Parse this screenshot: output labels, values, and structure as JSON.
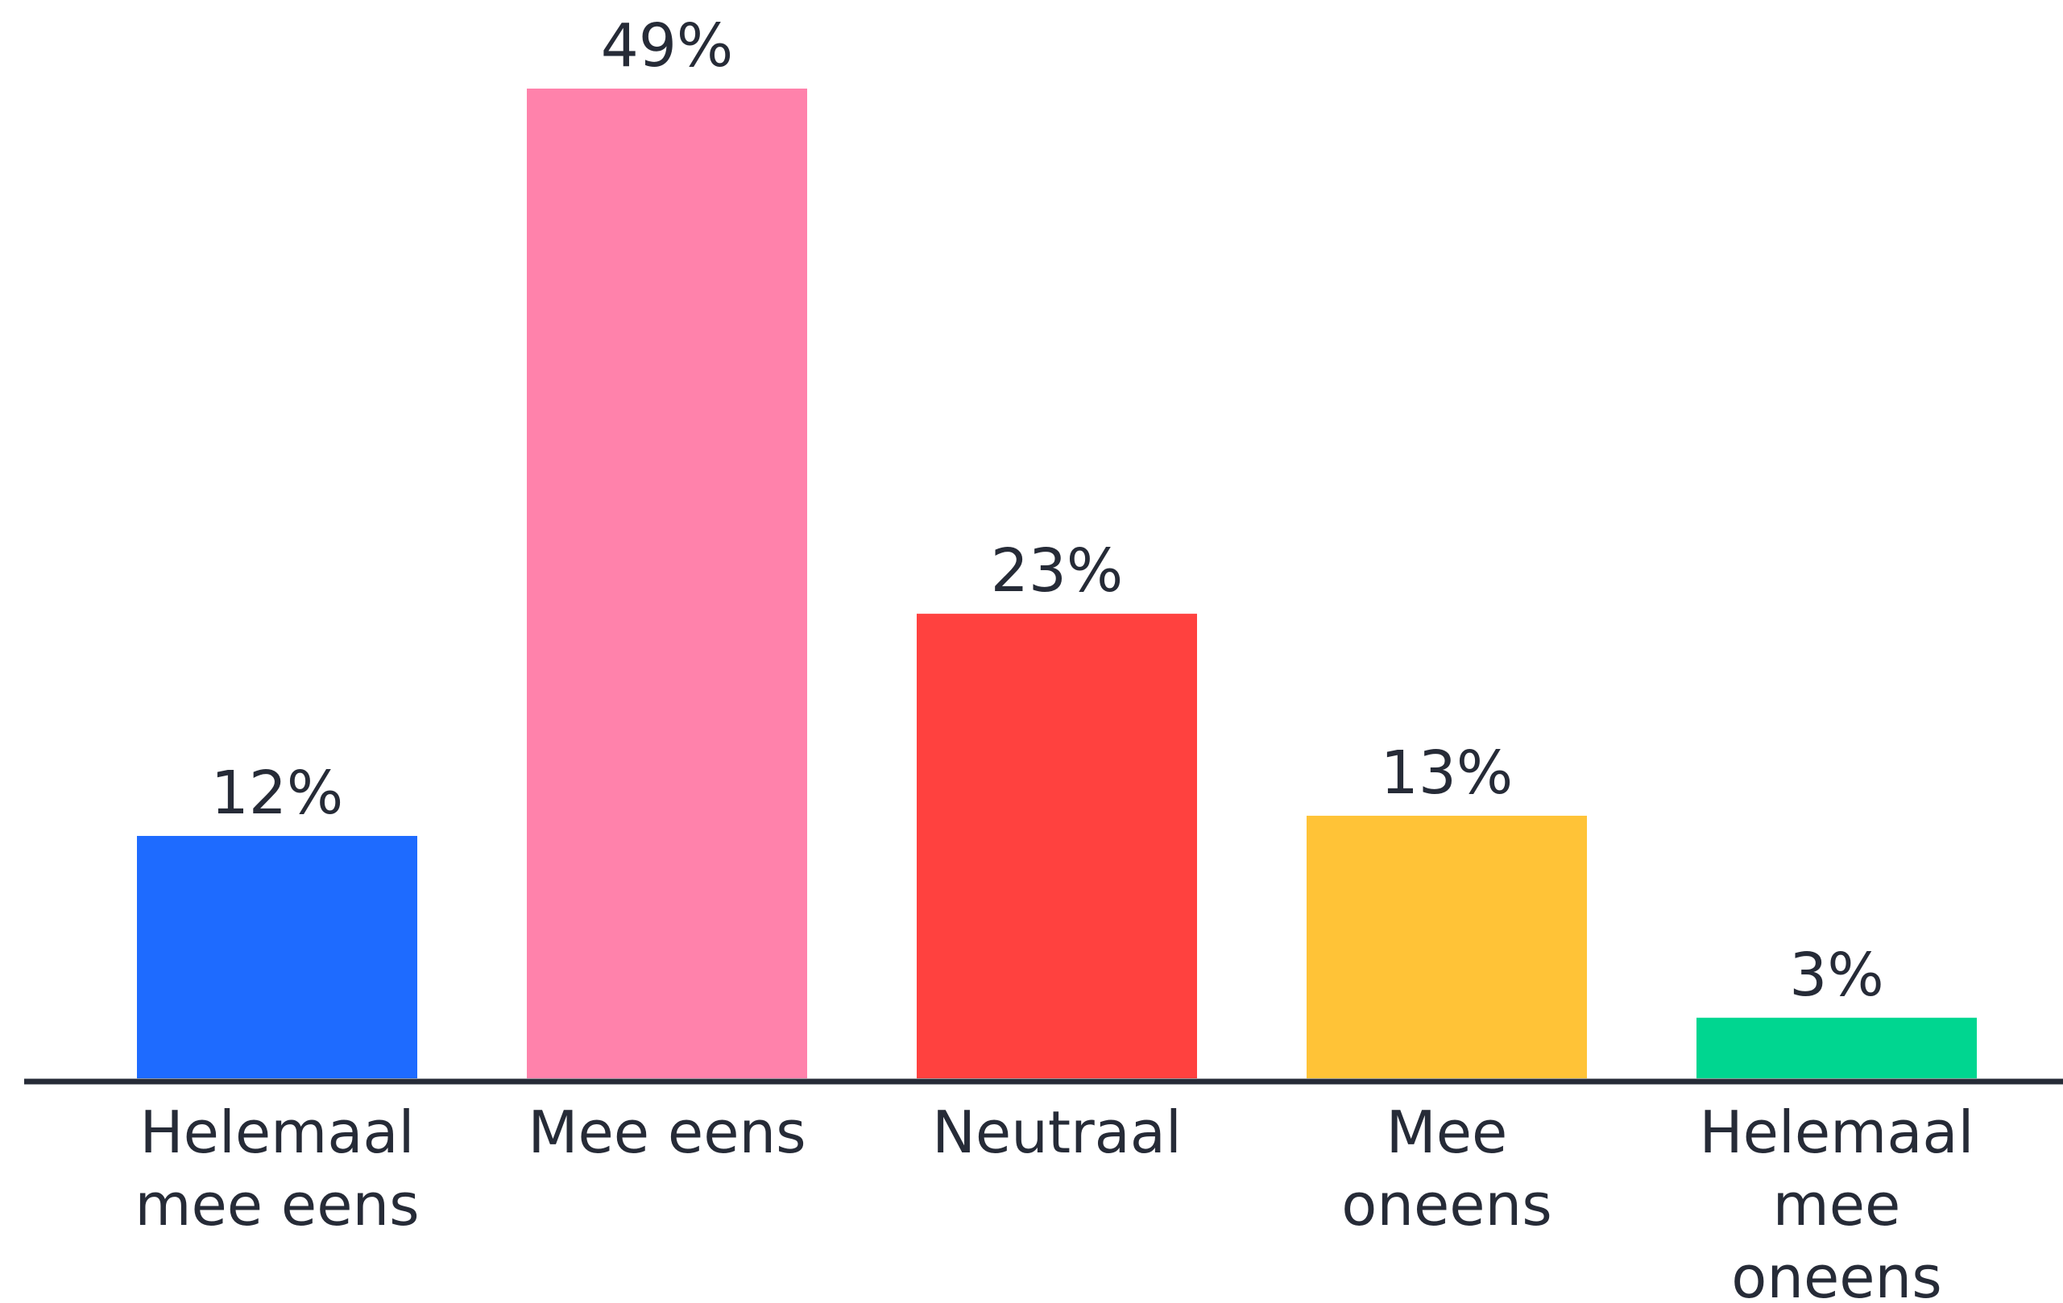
{
  "chart_data": {
    "type": "bar",
    "categories": [
      "Helemaal mee eens",
      "Mee eens",
      "Neutraal",
      "Mee oneens",
      "Helemaal mee oneens"
    ],
    "category_label_lines": [
      [
        "Helemaal",
        "mee eens"
      ],
      [
        "Mee eens"
      ],
      [
        "Neutraal"
      ],
      [
        "Mee",
        "oneens"
      ],
      [
        "Helemaal",
        "mee",
        "oneens"
      ]
    ],
    "values": [
      12,
      49,
      23,
      13,
      3
    ],
    "value_labels": [
      "12%",
      "49%",
      "23%",
      "13%",
      "3%"
    ],
    "colors": [
      "#1e6bff",
      "#ff82ab",
      "#ff413f",
      "#ffc337",
      "#00d690"
    ],
    "axis_color": "#262b37",
    "ylim": [
      0,
      49
    ],
    "grid": false,
    "legend": "none",
    "title": "",
    "xlabel": "",
    "ylabel": ""
  }
}
